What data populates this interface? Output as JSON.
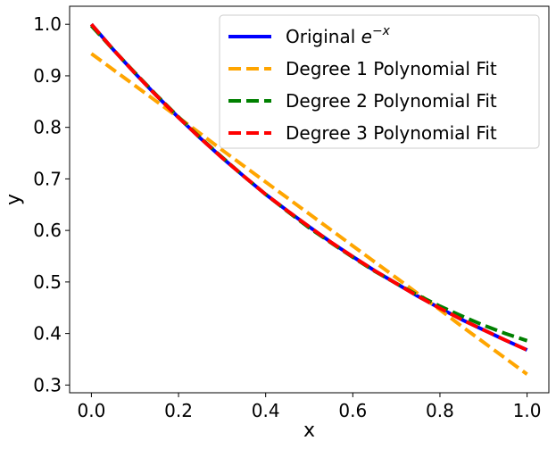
{
  "chart_data": {
    "type": "line",
    "title": "",
    "xlabel": "x",
    "ylabel": "y",
    "xlim": [
      -0.05,
      1.05
    ],
    "ylim": [
      0.285,
      1.035
    ],
    "grid": false,
    "legend_position": "upper-right",
    "xticks": [
      0.0,
      0.2,
      0.4,
      0.6,
      0.8,
      1.0
    ],
    "xtick_labels": [
      "0.0",
      "0.2",
      "0.4",
      "0.6",
      "0.8",
      "1.0"
    ],
    "yticks": [
      0.3,
      0.4,
      0.5,
      0.6,
      0.7,
      0.8,
      0.9,
      1.0
    ],
    "ytick_labels": [
      "0.3",
      "0.4",
      "0.5",
      "0.6",
      "0.7",
      "0.8",
      "0.9",
      "1.0"
    ],
    "x": [
      0.0,
      0.05,
      0.1,
      0.15,
      0.2,
      0.25,
      0.3,
      0.35,
      0.4,
      0.45,
      0.5,
      0.55,
      0.6,
      0.65,
      0.7,
      0.75,
      0.8,
      0.85,
      0.9,
      0.95,
      1.0
    ],
    "series": [
      {
        "name": "Original e^{-x}",
        "legend_label": "Original",
        "legend_math": "e",
        "legend_sup": "−x",
        "color": "#0000ff",
        "style": "solid",
        "y": [
          1.0,
          0.951,
          0.905,
          0.861,
          0.819,
          0.779,
          0.741,
          0.705,
          0.67,
          0.638,
          0.607,
          0.577,
          0.549,
          0.522,
          0.497,
          0.472,
          0.449,
          0.427,
          0.407,
          0.387,
          0.368
        ]
      },
      {
        "name": "Degree 1 Polynomial Fit",
        "legend_label": "Degree 1 Polynomial Fit",
        "color": "#ffa500",
        "style": "dashed",
        "y": [
          0.943,
          0.912,
          0.881,
          0.85,
          0.819,
          0.788,
          0.756,
          0.725,
          0.694,
          0.663,
          0.632,
          0.601,
          0.57,
          0.539,
          0.508,
          0.477,
          0.446,
          0.414,
          0.383,
          0.352,
          0.321
        ]
      },
      {
        "name": "Degree 2 Polynomial Fit",
        "legend_label": "Degree 2 Polynomial Fit",
        "color": "#008000",
        "style": "dashed",
        "y": [
          0.997,
          0.951,
          0.906,
          0.862,
          0.82,
          0.78,
          0.742,
          0.705,
          0.67,
          0.637,
          0.605,
          0.576,
          0.548,
          0.521,
          0.497,
          0.474,
          0.453,
          0.434,
          0.416,
          0.4,
          0.386
        ]
      },
      {
        "name": "Degree 3 Polynomial Fit",
        "legend_label": "Degree 3 Polynomial Fit",
        "color": "#ff0000",
        "style": "dashed",
        "y": [
          1.0,
          0.951,
          0.905,
          0.861,
          0.819,
          0.779,
          0.741,
          0.705,
          0.67,
          0.638,
          0.607,
          0.577,
          0.549,
          0.522,
          0.497,
          0.472,
          0.449,
          0.427,
          0.407,
          0.387,
          0.368
        ]
      }
    ]
  }
}
